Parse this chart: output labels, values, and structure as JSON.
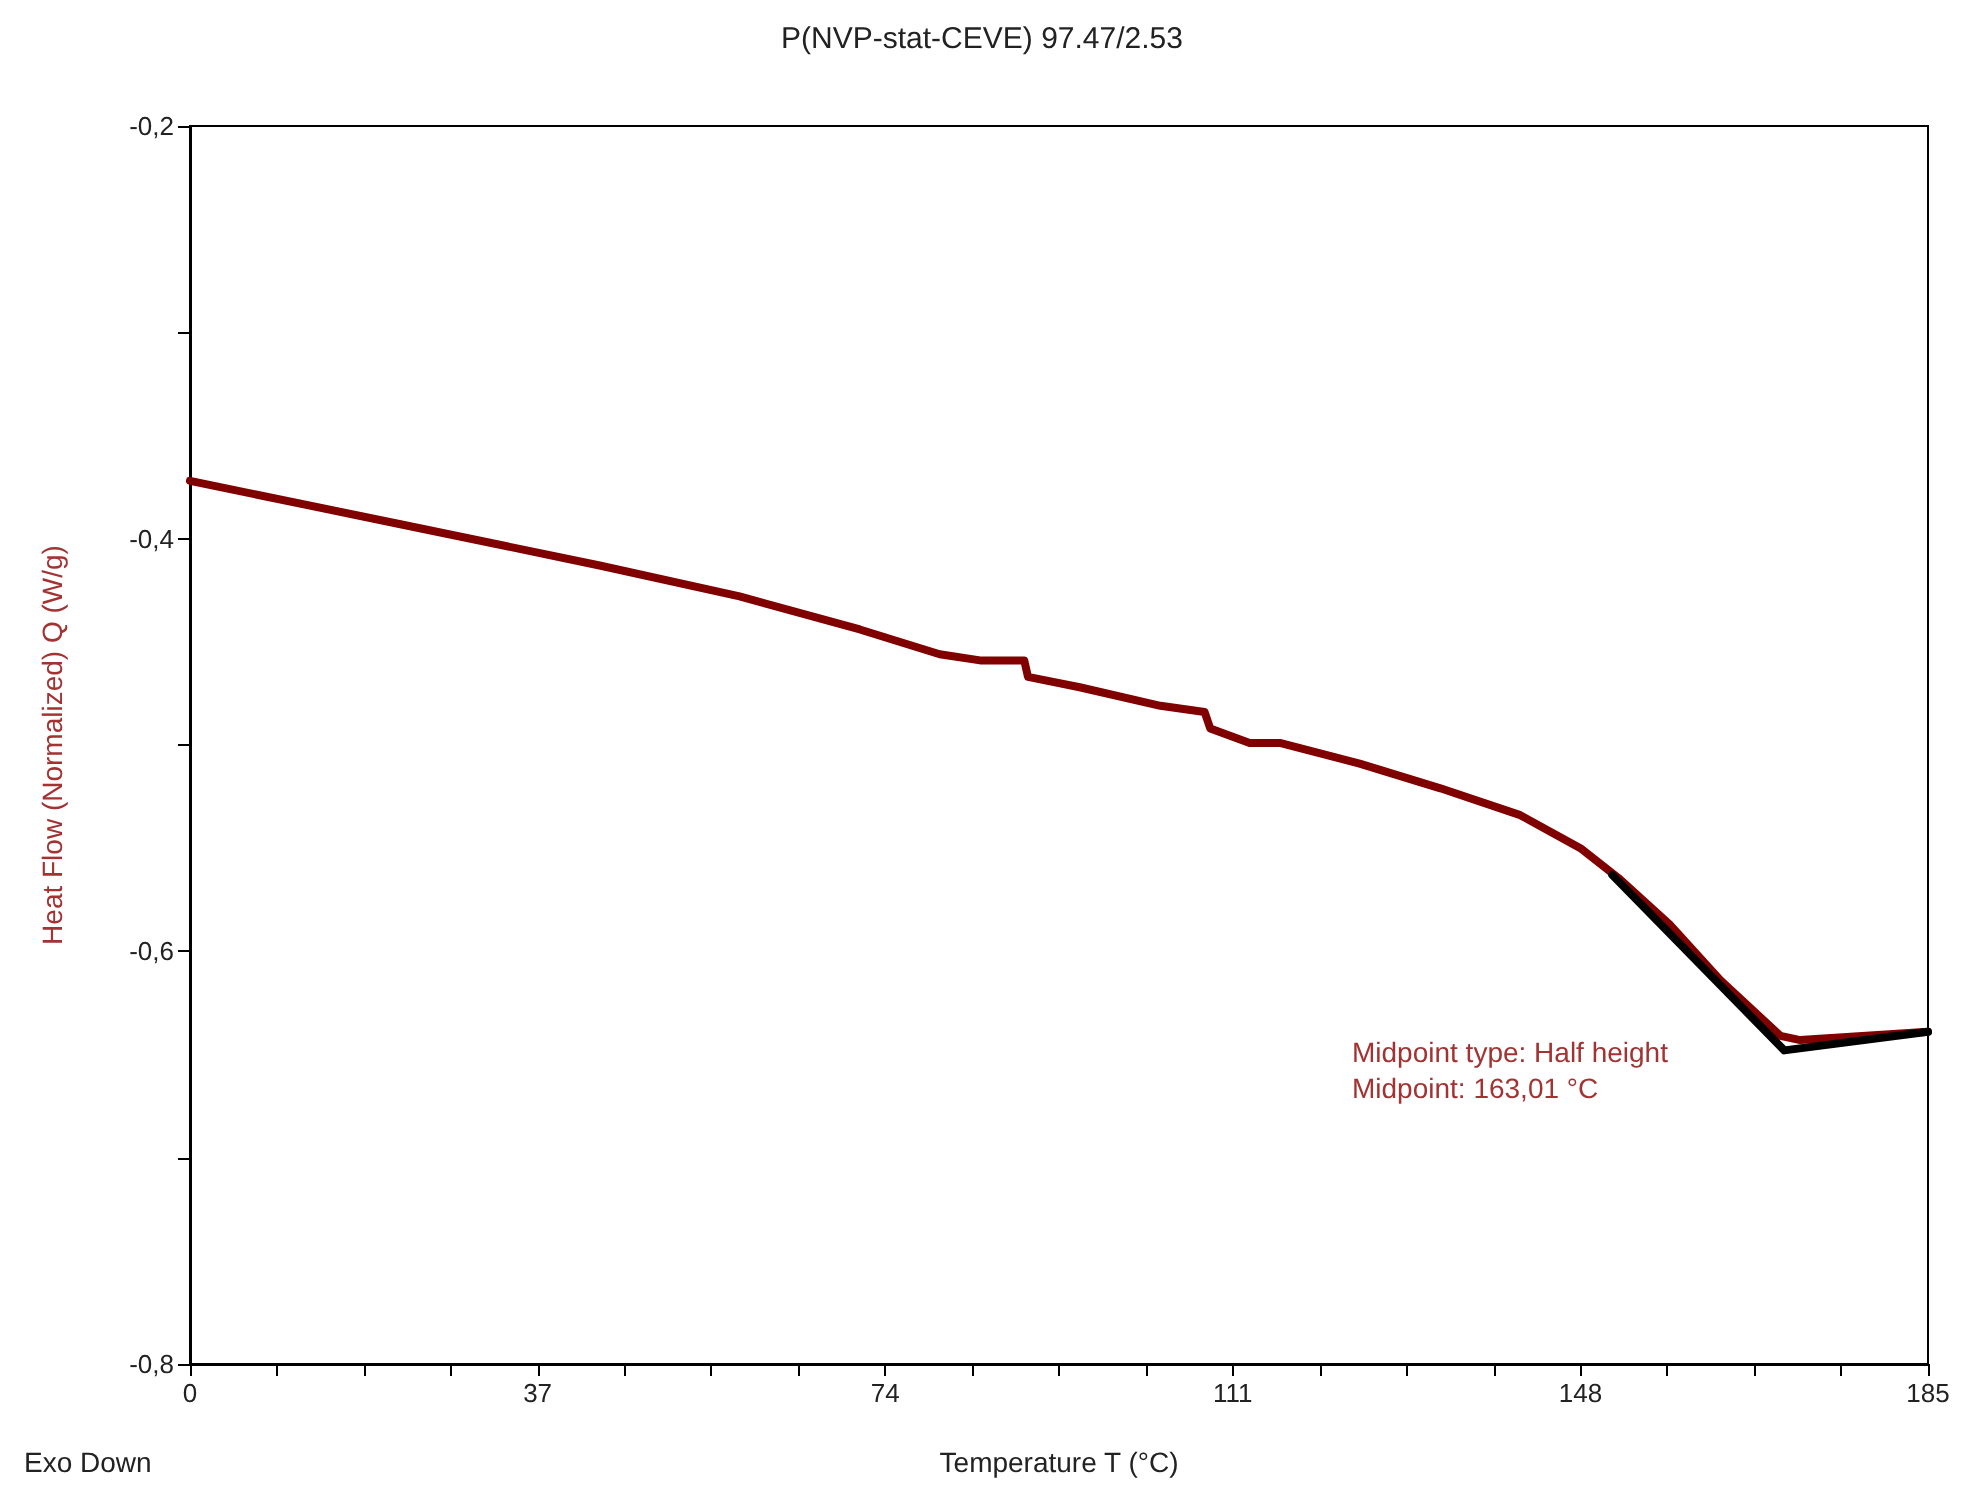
{
  "chart_data": {
    "type": "line",
    "title": "P(NVP-stat-CEVE) 97.47/2.53",
    "xlabel": "Temperature T (°C)",
    "ylabel": "Heat Flow (Normalized) Q (W/g)",
    "annotations": [
      "Midpoint type: Half height",
      "Midpoint: 163,01 °C",
      "Exo Down"
    ],
    "series": [
      {
        "color": "#800000",
        "x": [
          0,
          22.4,
          43.6,
          58.5,
          71.3,
          79.8,
          84.1,
          88.8,
          89.2,
          94.7,
          103.3,
          108,
          108.6,
          112.8,
          116,
          124.5,
          133.1,
          141.6,
          148,
          152.2,
          157.5,
          162.9,
          169.3,
          171.4,
          185
        ],
        "values": [
          -0.372,
          -0.393,
          -0.413,
          -0.428,
          -0.444,
          -0.456,
          -0.459,
          -0.459,
          -0.467,
          -0.472,
          -0.481,
          -0.484,
          -0.492,
          -0.499,
          -0.499,
          -0.509,
          -0.521,
          -0.534,
          -0.55,
          -0.565,
          -0.587,
          -0.614,
          -0.641,
          -0.643,
          -0.639
        ]
      },
      {
        "color": "#000000",
        "x": [
          151.4,
          169.7,
          185
        ],
        "values": [
          -0.563,
          -0.648,
          -0.639
        ]
      }
    ],
    "xlim": [
      0,
      185
    ],
    "xticks": [
      {
        "value": 0,
        "label": "0"
      },
      {
        "value": 9.25,
        "label": null
      },
      {
        "value": 18.5,
        "label": null
      },
      {
        "value": 27.75,
        "label": null
      },
      {
        "value": 37,
        "label": "37"
      },
      {
        "value": 46.25,
        "label": null
      },
      {
        "value": 55.5,
        "label": null
      },
      {
        "value": 64.75,
        "label": null
      },
      {
        "value": 74,
        "label": "74"
      },
      {
        "value": 83.25,
        "label": null
      },
      {
        "value": 92.5,
        "label": null
      },
      {
        "value": 101.75,
        "label": null
      },
      {
        "value": 111,
        "label": "111"
      },
      {
        "value": 120.25,
        "label": null
      },
      {
        "value": 129.5,
        "label": null
      },
      {
        "value": 138.75,
        "label": null
      },
      {
        "value": 148,
        "label": "148"
      },
      {
        "value": 157.25,
        "label": null
      },
      {
        "value": 166.5,
        "label": null
      },
      {
        "value": 175.75,
        "label": null
      },
      {
        "value": 185,
        "label": "185"
      }
    ],
    "ylim": [
      -0.8,
      -0.2
    ],
    "yticks": [
      {
        "value": -0.8,
        "label": "-0,8"
      },
      {
        "value": -0.7,
        "label": null
      },
      {
        "value": -0.6,
        "label": "-0,6"
      },
      {
        "value": -0.5,
        "label": null
      },
      {
        "value": -0.4,
        "label": "-0,4"
      },
      {
        "value": -0.3,
        "label": null
      },
      {
        "value": -0.2,
        "label": "-0,2"
      }
    ],
    "grid": false,
    "marker": "none",
    "line_style": "solid"
  }
}
